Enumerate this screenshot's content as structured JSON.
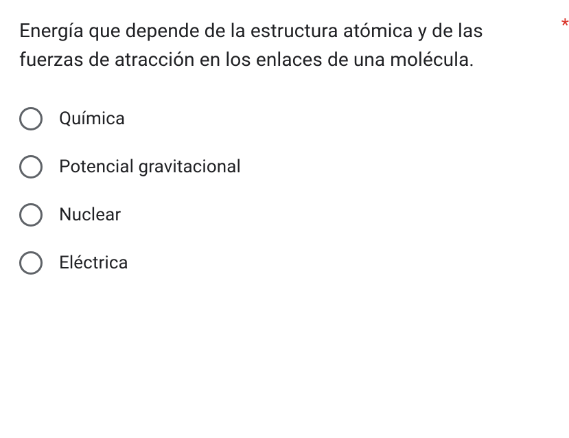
{
  "question": {
    "text": "Energía que depende de la estructura atómica y de las fuerzas de atracción en los enlaces de una molécula.",
    "required_marker": "*",
    "text_color": "#202124",
    "required_color": "#d93025",
    "font_size": 28
  },
  "options": [
    {
      "label": "Química",
      "selected": false
    },
    {
      "label": "Potencial gravitacional",
      "selected": false
    },
    {
      "label": "Nuclear",
      "selected": false
    },
    {
      "label": "Eléctrica",
      "selected": false
    }
  ],
  "styling": {
    "background_color": "#ffffff",
    "radio_border_color": "#5f6368",
    "radio_size": 34,
    "radio_border_width": 3,
    "option_font_size": 26,
    "option_text_color": "#202124",
    "option_gap": 36
  }
}
